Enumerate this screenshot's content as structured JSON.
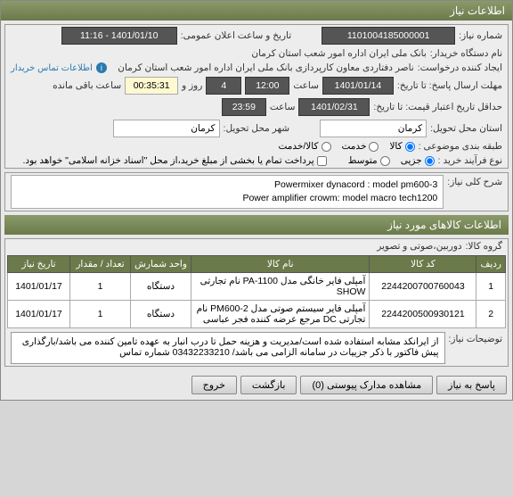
{
  "header": {
    "title": "اطلاعات نیاز"
  },
  "form": {
    "need_no_label": "شماره نیاز:",
    "need_no": "1101004185000001",
    "pub_date_label": "تاریخ و ساعت اعلان عمومی:",
    "pub_date": "1401/01/10 - 11:16",
    "buyer_label": "نام دستگاه خریدار:",
    "buyer": "بانک ملی ایران اداره امور شعب استان کرمان",
    "creator_label": "ایجاد کننده درخواست:",
    "creator": "ناصر دفتاردی معاون کارپردازی بانک ملی ایران اداره امور شعب استان کرمان",
    "contact_label": "اطلاعات تماس خریدار",
    "reply_deadline_label": "مهلت ارسال پاسخ: تا تاریخ:",
    "reply_date": "1401/01/14",
    "reply_time_label": "ساعت",
    "reply_time": "12:00",
    "days_label": "روز و",
    "days": "4",
    "remain_time": "00:35:31",
    "remain_label": "ساعت باقی مانده",
    "price_valid_label": "حداقل تاریخ اعتبار قیمت: تا تاریخ:",
    "price_valid_date": "1401/02/31",
    "price_valid_time": "23:59",
    "delivery_state_label": "استان محل تحویل:",
    "delivery_state": "کرمان",
    "delivery_city_label": "شهر محل تحویل:",
    "delivery_city": "کرمان",
    "category_label": "طبقه بندی موضوعی :",
    "cat_goods": "کالا",
    "cat_service": "خدمت",
    "cat_goods_service": "کالا/خدمت",
    "process_label": "نوع فرآیند خرید :",
    "proc_partial": "جزیی",
    "proc_medium": "متوسط",
    "partial_pay_note": "پرداخت تمام یا بخشی از مبلغ خرید،از محل \"اسناد خزانه اسلامی\" خواهد بود."
  },
  "need": {
    "title_label": "شرح کلی نیاز:",
    "title_line1": "3-Powermixer dynacord : model pm600",
    "title_line2": "Power amplifier crowm: model macro tech1200",
    "items_header": "اطلاعات کالاهای مورد نیاز",
    "group_label": "گروه کالا:",
    "group_value": "دوربین،صوتی و تصویر"
  },
  "table": {
    "headers": {
      "row": "ردیف",
      "code": "کد کالا",
      "name": "نام کالا",
      "unit": "واحد شمارش",
      "qty": "تعداد / مقدار",
      "date": "تاریخ نیاز"
    },
    "rows": [
      {
        "idx": "1",
        "code": "2244200700760043",
        "name": "آمپلی فایر خانگی مدل PA-1100 نام تجارتی SHOW",
        "unit": "دستگاه",
        "qty": "1",
        "date": "1401/01/17"
      },
      {
        "idx": "2",
        "code": "2244200500930121",
        "name": "آمپلی فایر سیستم صوتی مدل PM600-2 نام تجارتی DC مرجع عرضه کننده فجر عباسی",
        "unit": "دستگاه",
        "qty": "1",
        "date": "1401/01/17"
      }
    ]
  },
  "notes": {
    "label": "توضیحات نیاز:",
    "text": "از ایرانکد مشابه استفاده شده است/مدیریت و هزینه حمل تا درب انبار به عهده تامین کننده می باشد/بارگذاری پیش فاکتور با ذکر جزییات در سامانه الزامی می باشد/ 03432233210 شماره تماس"
  },
  "buttons": {
    "respond": "پاسخ به نیاز",
    "view_docs": "مشاهده مدارک پیوستی (0)",
    "back": "بازگشت",
    "exit": "خروج"
  }
}
